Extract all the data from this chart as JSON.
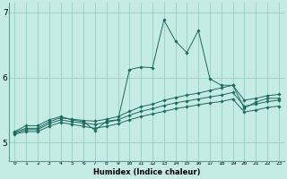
{
  "xlabel": "Humidex (Indice chaleur)",
  "bg_color": "#c5ebe5",
  "grid_color": "#8ec8c0",
  "line_color": "#1e6b60",
  "xlim": [
    -0.5,
    23.5
  ],
  "ylim": [
    4.72,
    7.15
  ],
  "yticks": [
    5,
    6,
    7
  ],
  "xticks": [
    0,
    1,
    2,
    3,
    4,
    5,
    6,
    7,
    8,
    9,
    10,
    11,
    12,
    13,
    14,
    15,
    16,
    17,
    18,
    19,
    20,
    21,
    22,
    23
  ],
  "s1": [
    5.17,
    5.26,
    5.26,
    5.35,
    5.4,
    5.35,
    5.32,
    5.19,
    5.33,
    5.35,
    6.12,
    6.16,
    6.15,
    6.88,
    6.56,
    6.38,
    6.72,
    5.98,
    5.88,
    5.88,
    5.53,
    5.62,
    5.68,
    5.68
  ],
  "s2": [
    5.16,
    5.22,
    5.22,
    5.32,
    5.38,
    5.36,
    5.34,
    5.33,
    5.36,
    5.4,
    5.48,
    5.55,
    5.59,
    5.65,
    5.69,
    5.73,
    5.76,
    5.8,
    5.84,
    5.88,
    5.65,
    5.68,
    5.72,
    5.74
  ],
  "s3": [
    5.14,
    5.2,
    5.2,
    5.29,
    5.35,
    5.32,
    5.3,
    5.28,
    5.31,
    5.35,
    5.42,
    5.48,
    5.52,
    5.57,
    5.61,
    5.64,
    5.67,
    5.7,
    5.73,
    5.77,
    5.56,
    5.59,
    5.63,
    5.65
  ],
  "s4": [
    5.13,
    5.17,
    5.17,
    5.25,
    5.31,
    5.28,
    5.25,
    5.22,
    5.25,
    5.29,
    5.35,
    5.4,
    5.44,
    5.48,
    5.52,
    5.55,
    5.58,
    5.61,
    5.63,
    5.67,
    5.47,
    5.5,
    5.54,
    5.56
  ]
}
